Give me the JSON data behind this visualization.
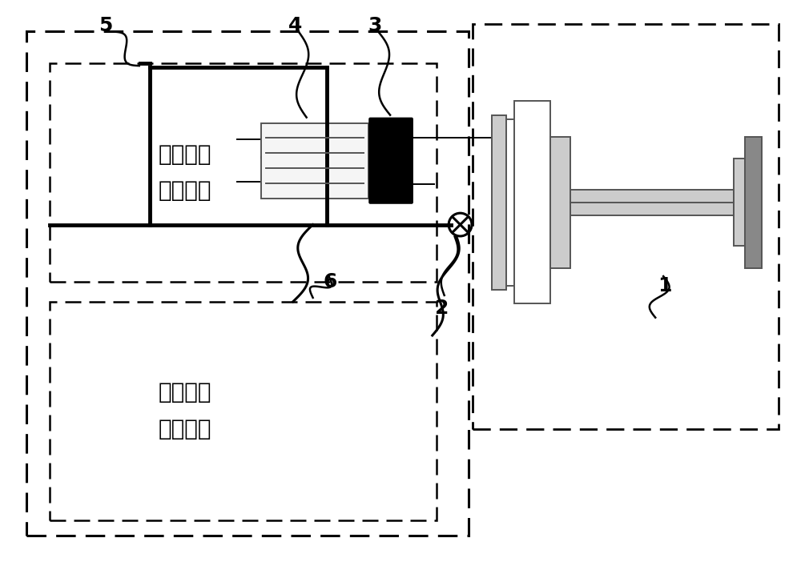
{
  "bg_color": "#ffffff",
  "line_color": "#000000",
  "gray_light": "#cccccc",
  "gray_mid": "#999999",
  "gray_dark": "#555555",
  "box1_label": "信号发生\n采集系统",
  "box2_label": "分析显示\n评判系统",
  "font_size_label": 18,
  "font_size_box": 20,
  "figsize": [
    10.0,
    7.07
  ],
  "lw_thick": 3.5,
  "lw_med": 2.2,
  "lw_thin": 1.4
}
